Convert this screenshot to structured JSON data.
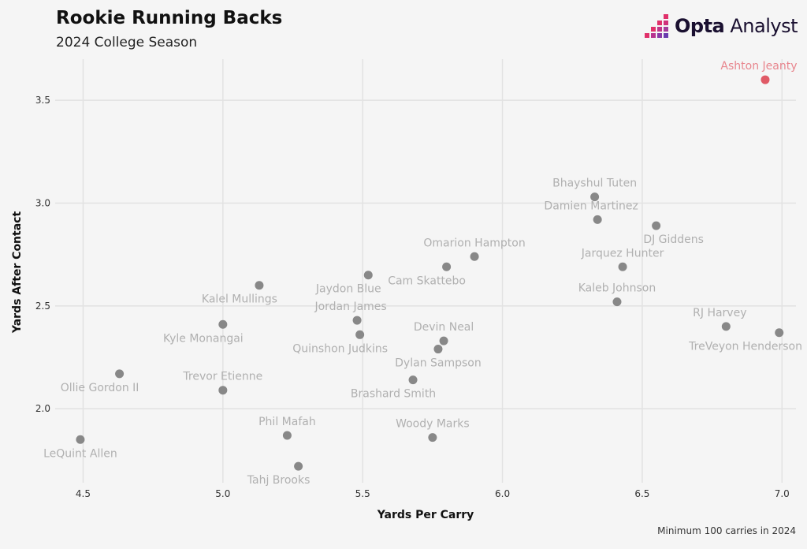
{
  "header": {
    "title": "Rookie Running Backs",
    "subtitle": "2024 College Season",
    "brand": {
      "bold": "Opta",
      "rest": " Analyst"
    }
  },
  "footnote": "Minimum 100 carries in 2024",
  "colors": {
    "point": "#888888",
    "highlight": "#e05a66",
    "label": "#b0b0b0",
    "highlight_label": "#e8868e",
    "grid": "#e2e2e2"
  },
  "chart_data": {
    "type": "scatter",
    "title": "Rookie Running Backs",
    "subtitle": "2024 College Season",
    "xlabel": "Yards Per Carry",
    "ylabel": "Yards After Contact",
    "xlim": [
      4.4,
      7.05
    ],
    "ylim": [
      1.64,
      3.7
    ],
    "xticks": [
      "4.5",
      "5.0",
      "5.5",
      "6.0",
      "6.5",
      "7.0"
    ],
    "yticks": [
      "2.0",
      "2.5",
      "3.0",
      "3.5"
    ],
    "grid": true,
    "points": [
      {
        "name": "Ashton Jeanty",
        "x": 6.94,
        "y": 3.6,
        "highlight": true,
        "label_pos": "above-left"
      },
      {
        "name": "Bhayshul Tuten",
        "x": 6.33,
        "y": 3.03,
        "label_pos": "above"
      },
      {
        "name": "Damien Martinez",
        "x": 6.34,
        "y": 2.92,
        "label_pos": "above-left"
      },
      {
        "name": "DJ Giddens",
        "x": 6.55,
        "y": 2.89,
        "label_pos": "below-right"
      },
      {
        "name": "Omarion Hampton",
        "x": 5.9,
        "y": 2.74,
        "label_pos": "above"
      },
      {
        "name": "Jarquez Hunter",
        "x": 6.43,
        "y": 2.69,
        "label_pos": "above"
      },
      {
        "name": "Cam Skattebo",
        "x": 5.8,
        "y": 2.69,
        "label_pos": "below-left"
      },
      {
        "name": "Jaydon Blue",
        "x": 5.52,
        "y": 2.65,
        "label_pos": "below-left"
      },
      {
        "name": "Kalel Mullings",
        "x": 5.13,
        "y": 2.6,
        "label_pos": "below-left"
      },
      {
        "name": "Kaleb Johnson",
        "x": 6.41,
        "y": 2.52,
        "label_pos": "above"
      },
      {
        "name": "Jordan James",
        "x": 5.48,
        "y": 2.43,
        "label_pos": "above-left"
      },
      {
        "name": "Kyle Monangai",
        "x": 5.0,
        "y": 2.41,
        "label_pos": "below-left"
      },
      {
        "name": "RJ Harvey",
        "x": 6.8,
        "y": 2.4,
        "label_pos": "above-left"
      },
      {
        "name": "TreVeyon Henderson",
        "x": 6.99,
        "y": 2.37,
        "label_pos": "below-left"
      },
      {
        "name": "Quinshon Judkins",
        "x": 5.49,
        "y": 2.36,
        "label_pos": "below-left"
      },
      {
        "name": "Devin Neal",
        "x": 5.79,
        "y": 2.33,
        "label_pos": "above"
      },
      {
        "name": "Dylan Sampson",
        "x": 5.77,
        "y": 2.29,
        "label_pos": "below"
      },
      {
        "name": "Ollie Gordon II",
        "x": 4.63,
        "y": 2.17,
        "label_pos": "below-left"
      },
      {
        "name": "Brashard Smith",
        "x": 5.68,
        "y": 2.14,
        "label_pos": "below-left"
      },
      {
        "name": "Trevor Etienne",
        "x": 5.0,
        "y": 2.09,
        "label_pos": "above"
      },
      {
        "name": "Phil Mafah",
        "x": 5.23,
        "y": 1.87,
        "label_pos": "above"
      },
      {
        "name": "Woody Marks",
        "x": 5.75,
        "y": 1.86,
        "label_pos": "above"
      },
      {
        "name": "LeQuint Allen",
        "x": 4.49,
        "y": 1.85,
        "label_pos": "below"
      },
      {
        "name": "Tahj Brooks",
        "x": 5.27,
        "y": 1.72,
        "label_pos": "below-left"
      }
    ]
  }
}
